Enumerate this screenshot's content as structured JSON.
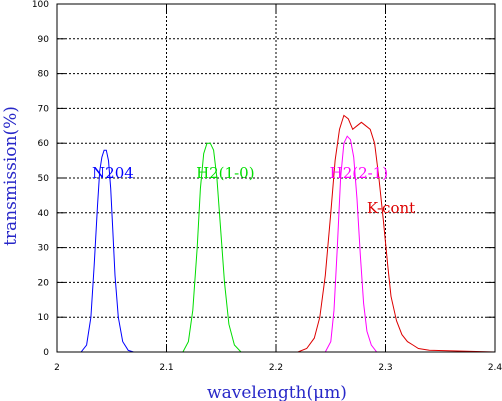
{
  "chart_data": {
    "type": "line",
    "xlabel": "wavelength(μm)",
    "ylabel": "transmission(%)",
    "xlim": [
      2.0,
      2.4
    ],
    "ylim": [
      0,
      100
    ],
    "x_ticks": [
      "2",
      "2.1",
      "2.2",
      "2.3",
      "2.4"
    ],
    "y_ticks": [
      "0",
      "10",
      "20",
      "30",
      "40",
      "50",
      "60",
      "70",
      "80",
      "90",
      "100"
    ],
    "grid": true,
    "grid_style": "dotted",
    "series": [
      {
        "name": "N204",
        "color": "#0000ff",
        "label_anchor": {
          "x": 2.032,
          "y": 50
        },
        "x": [
          2.0,
          2.022,
          2.027,
          2.031,
          2.034,
          2.037,
          2.039,
          2.041,
          2.043,
          2.045,
          2.047,
          2.049,
          2.051,
          2.053,
          2.056,
          2.06,
          2.065,
          2.07,
          2.4
        ],
        "y": [
          0,
          0,
          2,
          10,
          25,
          42,
          52,
          56,
          58,
          58,
          55,
          47,
          35,
          22,
          10,
          3,
          0.5,
          0,
          0
        ]
      },
      {
        "name": "H2(1-0)",
        "color": "#00dd00",
        "label_anchor": {
          "x": 2.127,
          "y": 50
        },
        "x": [
          2.0,
          2.115,
          2.12,
          2.124,
          2.128,
          2.131,
          2.134,
          2.137,
          2.14,
          2.143,
          2.146,
          2.149,
          2.153,
          2.157,
          2.162,
          2.168,
          2.4
        ],
        "y": [
          0,
          0,
          3,
          12,
          30,
          47,
          57,
          60,
          60,
          58,
          50,
          37,
          20,
          8,
          2,
          0,
          0
        ]
      },
      {
        "name": "H2(2-1)",
        "color": "#ff00ff",
        "label_anchor": {
          "x": 2.249,
          "y": 50
        },
        "x": [
          2.0,
          2.245,
          2.25,
          2.253,
          2.256,
          2.259,
          2.262,
          2.265,
          2.268,
          2.271,
          2.274,
          2.277,
          2.28,
          2.283,
          2.287,
          2.292,
          2.4
        ],
        "y": [
          0,
          0,
          3,
          12,
          30,
          50,
          60,
          62,
          61,
          56,
          44,
          28,
          14,
          6,
          2,
          0,
          0
        ]
      },
      {
        "name": "K-cont",
        "color": "#dd0000",
        "label_anchor": {
          "x": 2.283,
          "y": 40
        },
        "x": [
          2.0,
          2.22,
          2.228,
          2.235,
          2.24,
          2.245,
          2.25,
          2.254,
          2.258,
          2.262,
          2.266,
          2.27,
          2.274,
          2.278,
          2.282,
          2.286,
          2.29,
          2.294,
          2.298,
          2.302,
          2.305,
          2.31,
          2.315,
          2.32,
          2.325,
          2.33,
          2.34,
          2.4
        ],
        "y": [
          0,
          0,
          1,
          4,
          10,
          22,
          40,
          55,
          64,
          68,
          67,
          64,
          65,
          66,
          65,
          64,
          60,
          50,
          38,
          25,
          16,
          9,
          5,
          3,
          2,
          1,
          0.5,
          0
        ]
      }
    ]
  }
}
